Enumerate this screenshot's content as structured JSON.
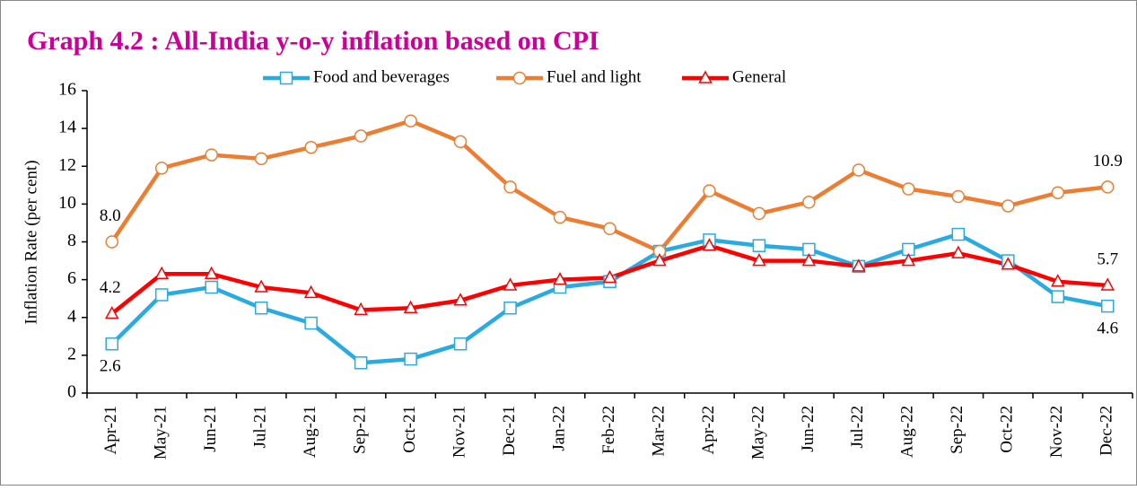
{
  "chart_data": {
    "type": "line",
    "title": "Graph 4.2 : All-India y-o-y inflation based on CPI",
    "y_label": "Inflation Rate (per cent)",
    "categories": [
      "Apr-21",
      "May-21",
      "Jun-21",
      "Jul-21",
      "Aug-21",
      "Sep-21",
      "Oct-21",
      "Nov-21",
      "Dec-21",
      "Jan-22",
      "Feb-22",
      "Mar-22",
      "Apr-22",
      "May-22",
      "Jun-22",
      "Jul-22",
      "Aug-22",
      "Sep-22",
      "Oct-22",
      "Nov-22",
      "Dec-22"
    ],
    "series": [
      {
        "name": "Food and beverages",
        "color": "#29abe2",
        "marker": "square",
        "values": [
          2.6,
          5.2,
          5.6,
          4.5,
          3.7,
          1.6,
          1.8,
          2.6,
          4.5,
          5.6,
          5.9,
          7.5,
          8.1,
          7.8,
          7.6,
          6.7,
          7.6,
          8.4,
          7.0,
          5.1,
          4.6
        ],
        "value_labels": [
          "2.6",
          null,
          null,
          null,
          null,
          null,
          null,
          null,
          null,
          null,
          null,
          null,
          null,
          null,
          null,
          null,
          null,
          null,
          null,
          null,
          "4.6"
        ]
      },
      {
        "name": "Fuel and light",
        "color": "#ed7d31",
        "marker": "circle",
        "values": [
          8.0,
          11.9,
          12.6,
          12.4,
          13.0,
          13.6,
          14.4,
          13.3,
          10.9,
          9.3,
          8.7,
          7.5,
          10.7,
          9.5,
          10.1,
          11.8,
          10.8,
          10.4,
          9.9,
          10.6,
          10.9
        ],
        "value_labels": [
          "8.0",
          null,
          null,
          null,
          null,
          null,
          null,
          null,
          null,
          null,
          null,
          null,
          null,
          null,
          null,
          null,
          null,
          null,
          null,
          null,
          "10.9"
        ]
      },
      {
        "name": "General",
        "color": "#ff0000",
        "marker": "triangle",
        "values": [
          4.2,
          6.3,
          6.3,
          5.6,
          5.3,
          4.4,
          4.5,
          4.9,
          5.7,
          6.0,
          6.1,
          7.0,
          7.8,
          7.0,
          7.0,
          6.7,
          7.0,
          7.4,
          6.8,
          5.9,
          5.7
        ],
        "value_labels": [
          "4.2",
          null,
          null,
          null,
          null,
          null,
          null,
          null,
          null,
          null,
          null,
          null,
          null,
          null,
          null,
          null,
          null,
          null,
          null,
          null,
          "5.7"
        ]
      }
    ],
    "ylim": [
      0,
      16
    ],
    "yticks": [
      0,
      2,
      4,
      6,
      8,
      10,
      12,
      14,
      16
    ],
    "grid": false,
    "legend": "top"
  }
}
